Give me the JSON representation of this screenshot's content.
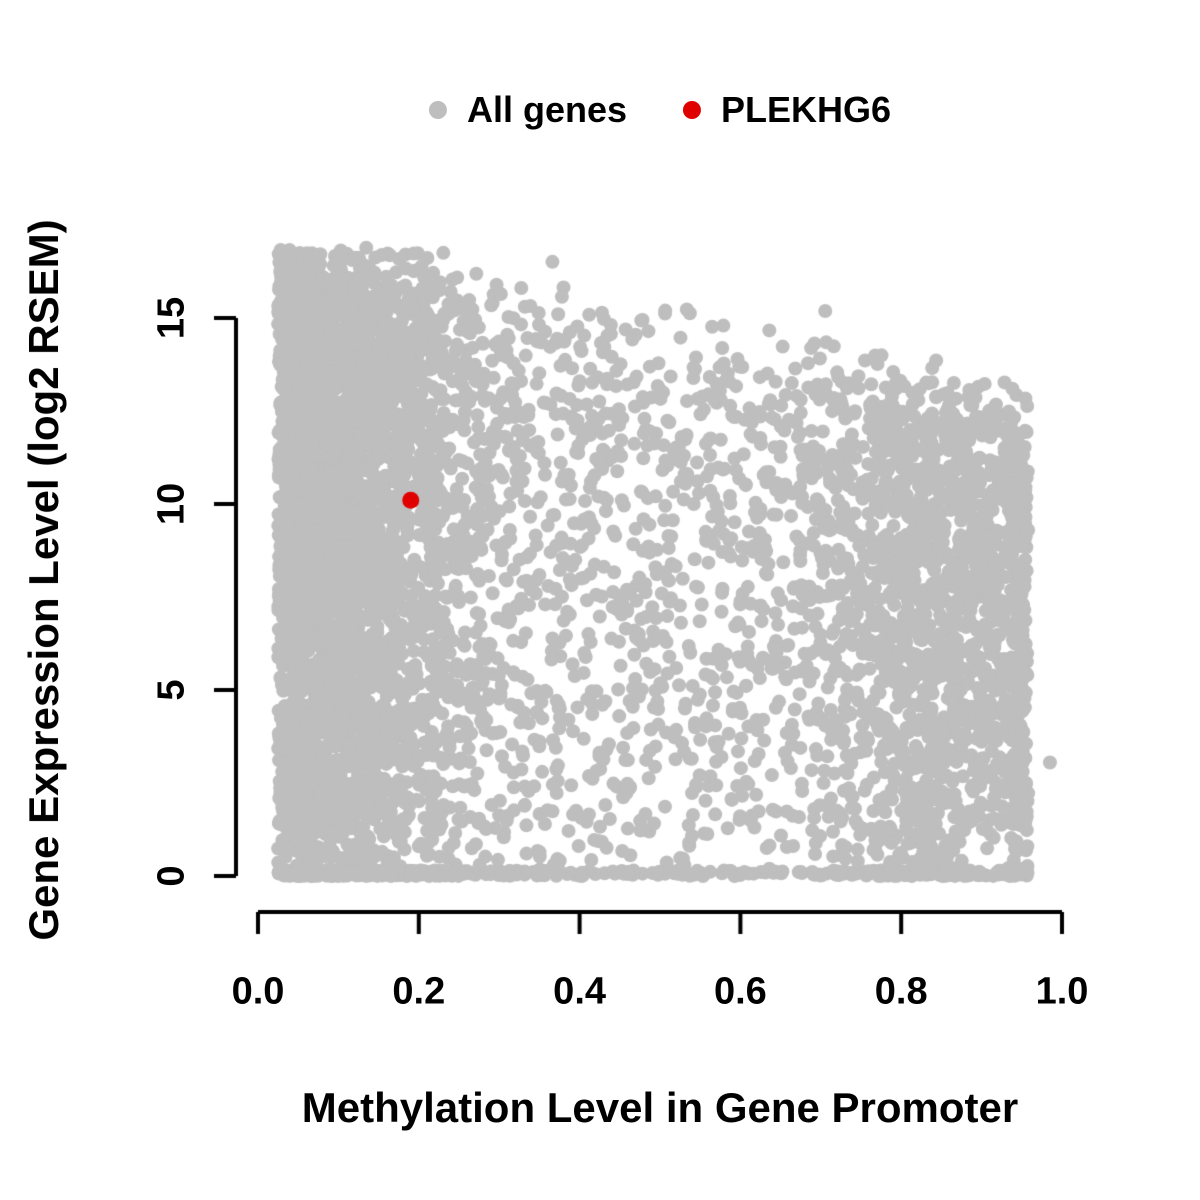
{
  "chart_data": {
    "type": "scatter",
    "title": "",
    "xlabel": "Methylation Level in Gene Promoter",
    "ylabel": "Gene Expression Level (log2 RSEM)",
    "xlim": [
      0,
      1
    ],
    "ylim": [
      0,
      17
    ],
    "x_tick_values": [
      0,
      0.2,
      0.4,
      0.6,
      0.8,
      1.0
    ],
    "x_tick_labels": [
      "0.0",
      "0.2",
      "0.4",
      "0.6",
      "0.8",
      "1.0"
    ],
    "y_tick_values": [
      0,
      5,
      10,
      15
    ],
    "y_tick_labels": [
      "0",
      "5",
      "10",
      "15"
    ],
    "grid": false,
    "legend_position": "top-center",
    "legend": {
      "entries": [
        {
          "label": "All genes",
          "color": "#bebebe"
        },
        {
          "label": "PLEKHG6",
          "color": "#e00000"
        }
      ]
    },
    "series": [
      {
        "name": "All genes",
        "color": "#bebebe",
        "marker": "filled-circle",
        "n_points": 7000,
        "seed": 42,
        "distribution": {
          "description": "dense gray cloud spanning methylation 0.02-0.96; expression from 0 up to an upper envelope near 16.8 at low methylation that declines to about 12 at high methylation; heaviest density at low methylation, secondary cluster near methylation 0.85, solid band of points at expression 0",
          "x_components": [
            {
              "type": "half-normal",
              "weight": 0.45,
              "offset": 0.025,
              "sigma": 0.11
            },
            {
              "type": "power-uniform",
              "weight": 0.35,
              "min": 0.03,
              "range": 0.93,
              "power": 1.25
            },
            {
              "type": "normal",
              "weight": 0.2,
              "mean": 0.845,
              "sigma": 0.085
            }
          ],
          "x_clip": [
            0.02,
            0.958
          ],
          "y_envelope": {
            "intercept": 17.0,
            "slope": -4.9,
            "noise_sigma": 0.7,
            "max": 16.9,
            "min": 1.0
          },
          "y_power": 0.8,
          "zero_band_fraction": 0.09,
          "zero_band_height": 0.15
        },
        "outliers": [
          [
            0.985,
            3.05
          ]
        ]
      },
      {
        "name": "PLEKHG6",
        "color": "#e00000",
        "marker": "filled-circle",
        "points": [
          [
            0.19,
            10.1
          ]
        ]
      }
    ]
  },
  "colors": {
    "background": "#ffffff",
    "axis": "#000000",
    "text": "#000000"
  }
}
